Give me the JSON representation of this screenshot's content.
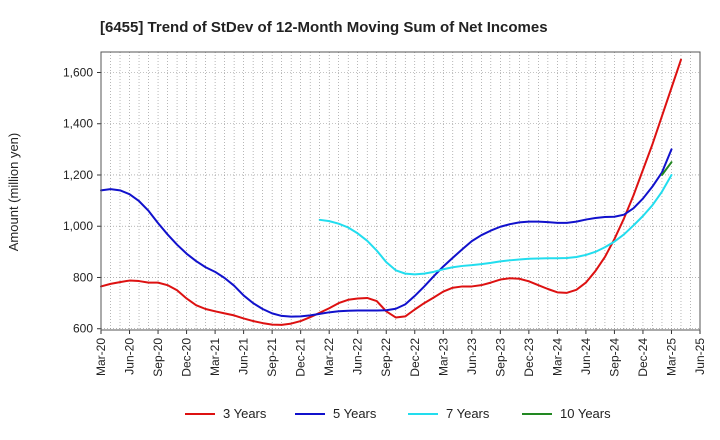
{
  "chart_data": {
    "type": "line",
    "title": "[6455]  Trend of StDev of 12-Month Moving Sum of Net Incomes",
    "ylabel": "Amount (million yen)",
    "xlabel": "",
    "ylim": [
      595,
      1680
    ],
    "y_ticks": [
      600,
      800,
      1000,
      1200,
      1400,
      1600
    ],
    "y_tick_labels": [
      "600",
      "800",
      "1,000",
      "1,200",
      "1,400",
      "1,600"
    ],
    "x_tick_labels": [
      "Mar-20",
      "Jun-20",
      "Sep-20",
      "Dec-20",
      "Mar-21",
      "Jun-21",
      "Sep-21",
      "Dec-21",
      "Mar-22",
      "Jun-22",
      "Sep-22",
      "Dec-22",
      "Mar-23",
      "Jun-23",
      "Sep-23",
      "Dec-23",
      "Mar-24",
      "Jun-24",
      "Sep-24",
      "Dec-24",
      "Mar-25",
      "Jun-25"
    ],
    "grid": true,
    "legend_position": "bottom",
    "series": [
      {
        "name": "3 Years",
        "color": "#dd1111",
        "points": [
          [
            "Mar-20",
            765
          ],
          [
            "Apr-20",
            775
          ],
          [
            "May-20",
            782
          ],
          [
            "Jun-20",
            788
          ],
          [
            "Jul-20",
            786
          ],
          [
            "Aug-20",
            780
          ],
          [
            "Sep-20",
            780
          ],
          [
            "Oct-20",
            770
          ],
          [
            "Nov-20",
            750
          ],
          [
            "Dec-20",
            718
          ],
          [
            "Jan-21",
            692
          ],
          [
            "Feb-21",
            677
          ],
          [
            "Mar-21",
            668
          ],
          [
            "Apr-21",
            660
          ],
          [
            "May-21",
            652
          ],
          [
            "Jun-21",
            640
          ],
          [
            "Jul-21",
            630
          ],
          [
            "Aug-21",
            622
          ],
          [
            "Sep-21",
            616
          ],
          [
            "Oct-21",
            615
          ],
          [
            "Nov-21",
            620
          ],
          [
            "Dec-21",
            630
          ],
          [
            "Jan-22",
            645
          ],
          [
            "Feb-22",
            662
          ],
          [
            "Mar-22",
            680
          ],
          [
            "Apr-22",
            700
          ],
          [
            "May-22",
            713
          ],
          [
            "Jun-22",
            718
          ],
          [
            "Jul-22",
            720
          ],
          [
            "Aug-22",
            708
          ],
          [
            "Sep-22",
            668
          ],
          [
            "Oct-22",
            644
          ],
          [
            "Nov-22",
            648
          ],
          [
            "Dec-22",
            675
          ],
          [
            "Jan-23",
            700
          ],
          [
            "Feb-23",
            722
          ],
          [
            "Mar-23",
            745
          ],
          [
            "Apr-23",
            760
          ],
          [
            "May-23",
            765
          ],
          [
            "Jun-23",
            765
          ],
          [
            "Jul-23",
            770
          ],
          [
            "Aug-23",
            780
          ],
          [
            "Sep-23",
            792
          ],
          [
            "Oct-23",
            797
          ],
          [
            "Nov-23",
            795
          ],
          [
            "Dec-23",
            785
          ],
          [
            "Jan-24",
            770
          ],
          [
            "Feb-24",
            755
          ],
          [
            "Mar-24",
            742
          ],
          [
            "Apr-24",
            740
          ],
          [
            "May-24",
            752
          ],
          [
            "Jun-24",
            780
          ],
          [
            "Jul-24",
            825
          ],
          [
            "Aug-24",
            880
          ],
          [
            "Sep-24",
            950
          ],
          [
            "Oct-24",
            1030
          ],
          [
            "Nov-24",
            1120
          ],
          [
            "Dec-24",
            1220
          ],
          [
            "Jan-25",
            1320
          ],
          [
            "Feb-25",
            1430
          ],
          [
            "Mar-25",
            1540
          ],
          [
            "Apr-25",
            1650
          ]
        ]
      },
      {
        "name": "5 Years",
        "color": "#1111cc",
        "points": [
          [
            "Mar-20",
            1140
          ],
          [
            "Apr-20",
            1145
          ],
          [
            "May-20",
            1140
          ],
          [
            "Jun-20",
            1125
          ],
          [
            "Jul-20",
            1098
          ],
          [
            "Aug-20",
            1060
          ],
          [
            "Sep-20",
            1012
          ],
          [
            "Oct-20",
            968
          ],
          [
            "Nov-20",
            928
          ],
          [
            "Dec-20",
            893
          ],
          [
            "Jan-21",
            864
          ],
          [
            "Feb-21",
            840
          ],
          [
            "Mar-21",
            822
          ],
          [
            "Apr-21",
            798
          ],
          [
            "May-21",
            768
          ],
          [
            "Jun-21",
            730
          ],
          [
            "Jul-21",
            700
          ],
          [
            "Aug-21",
            677
          ],
          [
            "Sep-21",
            660
          ],
          [
            "Oct-21",
            650
          ],
          [
            "Nov-21",
            647
          ],
          [
            "Dec-21",
            648
          ],
          [
            "Jan-22",
            652
          ],
          [
            "Feb-22",
            658
          ],
          [
            "Mar-22",
            664
          ],
          [
            "Apr-22",
            668
          ],
          [
            "May-22",
            670
          ],
          [
            "Jun-22",
            671
          ],
          [
            "Jul-22",
            671
          ],
          [
            "Aug-22",
            671
          ],
          [
            "Sep-22",
            672
          ],
          [
            "Oct-22",
            678
          ],
          [
            "Nov-22",
            695
          ],
          [
            "Dec-22",
            728
          ],
          [
            "Jan-23",
            765
          ],
          [
            "Feb-23",
            805
          ],
          [
            "Mar-23",
            843
          ],
          [
            "Apr-23",
            877
          ],
          [
            "May-23",
            910
          ],
          [
            "Jun-23",
            942
          ],
          [
            "Jul-23",
            965
          ],
          [
            "Aug-23",
            983
          ],
          [
            "Sep-23",
            998
          ],
          [
            "Oct-23",
            1008
          ],
          [
            "Nov-23",
            1015
          ],
          [
            "Dec-23",
            1018
          ],
          [
            "Jan-24",
            1018
          ],
          [
            "Feb-24",
            1016
          ],
          [
            "Mar-24",
            1013
          ],
          [
            "Apr-24",
            1013
          ],
          [
            "May-24",
            1018
          ],
          [
            "Jun-24",
            1026
          ],
          [
            "Jul-24",
            1032
          ],
          [
            "Aug-24",
            1036
          ],
          [
            "Sep-24",
            1037
          ],
          [
            "Oct-24",
            1045
          ],
          [
            "Nov-24",
            1070
          ],
          [
            "Dec-24",
            1108
          ],
          [
            "Jan-25",
            1155
          ],
          [
            "Feb-25",
            1210
          ],
          [
            "Mar-25",
            1300
          ]
        ]
      },
      {
        "name": "7 Years",
        "color": "#22ddee",
        "points": [
          [
            "Feb-22",
            1025
          ],
          [
            "Mar-22",
            1020
          ],
          [
            "Apr-22",
            1010
          ],
          [
            "May-22",
            995
          ],
          [
            "Jun-22",
            972
          ],
          [
            "Jul-22",
            943
          ],
          [
            "Aug-22",
            905
          ],
          [
            "Sep-22",
            860
          ],
          [
            "Oct-22",
            828
          ],
          [
            "Nov-22",
            815
          ],
          [
            "Dec-22",
            812
          ],
          [
            "Jan-23",
            815
          ],
          [
            "Feb-23",
            822
          ],
          [
            "Mar-23",
            832
          ],
          [
            "Apr-23",
            840
          ],
          [
            "May-23",
            845
          ],
          [
            "Jun-23",
            848
          ],
          [
            "Jul-23",
            852
          ],
          [
            "Aug-23",
            857
          ],
          [
            "Sep-23",
            863
          ],
          [
            "Oct-23",
            867
          ],
          [
            "Nov-23",
            870
          ],
          [
            "Dec-23",
            873
          ],
          [
            "Jan-24",
            874
          ],
          [
            "Feb-24",
            875
          ],
          [
            "Mar-24",
            875
          ],
          [
            "Apr-24",
            876
          ],
          [
            "May-24",
            880
          ],
          [
            "Jun-24",
            888
          ],
          [
            "Jul-24",
            900
          ],
          [
            "Aug-24",
            918
          ],
          [
            "Sep-24",
            940
          ],
          [
            "Oct-24",
            968
          ],
          [
            "Nov-24",
            1003
          ],
          [
            "Dec-24",
            1040
          ],
          [
            "Jan-25",
            1082
          ],
          [
            "Feb-25",
            1135
          ],
          [
            "Mar-25",
            1200
          ]
        ]
      },
      {
        "name": "10 Years",
        "color": "#228822",
        "points": [
          [
            "Feb-25",
            1200
          ],
          [
            "Mar-25",
            1250
          ]
        ]
      }
    ]
  }
}
